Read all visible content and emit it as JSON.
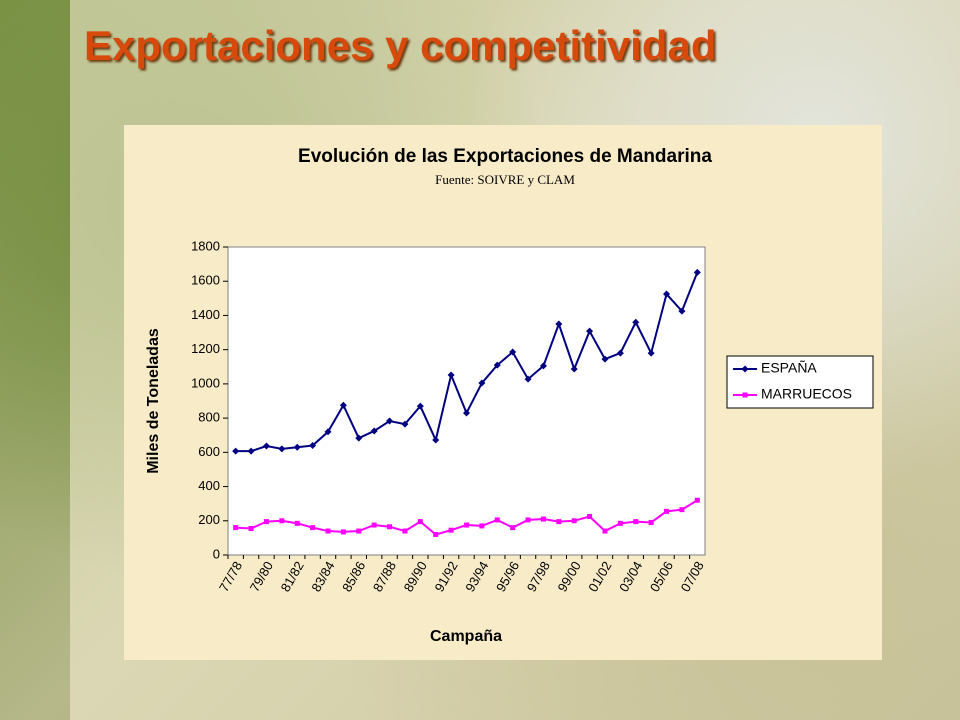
{
  "header": {
    "title": "Exportaciones y competitividad"
  },
  "chart_data": {
    "type": "line",
    "title": "Evolución de las Exportaciones de Mandarina",
    "subtitle": "Fuente: SOIVRE y CLAM",
    "x_label": "Campaña",
    "y_label": "Miles de Toneladas",
    "categories": [
      "77/78",
      null,
      "79/80",
      null,
      "81/82",
      null,
      "83/84",
      null,
      "85/86",
      null,
      "87/88",
      null,
      "89/90",
      null,
      "91/92",
      null,
      "93/94",
      null,
      "95/96",
      null,
      "97/98",
      null,
      "99/00",
      null,
      "01/02",
      null,
      "03/04",
      null,
      "05/06",
      null,
      "07/08"
    ],
    "series": [
      {
        "name": "ESPAÑA",
        "color": "#000080",
        "marker": "diamond",
        "values": [
          607,
          607,
          637,
          620,
          630,
          640,
          720,
          875,
          683,
          725,
          783,
          765,
          870,
          672,
          1052,
          830,
          1005,
          1110,
          1186,
          1028,
          1105,
          1350,
          1087,
          1308,
          1145,
          1180,
          1360,
          1180,
          1525,
          1425,
          1652
        ]
      },
      {
        "name": "MARRUECOS",
        "color": "#ff00ff",
        "marker": "square",
        "values": [
          160,
          155,
          195,
          200,
          185,
          160,
          140,
          135,
          140,
          175,
          165,
          140,
          195,
          120,
          145,
          175,
          170,
          205,
          160,
          205,
          210,
          195,
          200,
          225,
          140,
          185,
          195,
          190,
          255,
          265,
          320
        ]
      }
    ],
    "ylim": [
      0,
      1800
    ],
    "yticks": [
      0,
      200,
      400,
      600,
      800,
      1000,
      1200,
      1400,
      1600,
      1800
    ],
    "grid": false,
    "legend": "right"
  }
}
